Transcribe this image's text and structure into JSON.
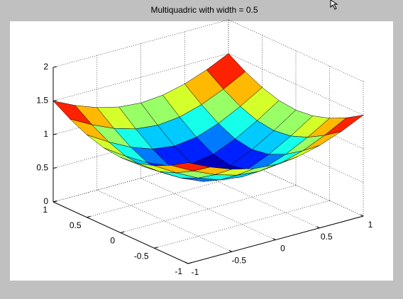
{
  "chart_data": {
    "type": "surface",
    "title": "Multiquadric with width = 0.5",
    "x": [
      -1,
      -0.75,
      -0.5,
      -0.25,
      0,
      0.25,
      0.5,
      0.75,
      1
    ],
    "y": [
      -1,
      -0.75,
      -0.5,
      -0.25,
      0,
      0.25,
      0.5,
      0.75,
      1
    ],
    "z": [
      [
        1.5,
        1.346,
        1.225,
        1.146,
        1.118,
        1.146,
        1.225,
        1.346,
        1.5
      ],
      [
        1.346,
        1.173,
        1.031,
        0.935,
        0.901,
        0.935,
        1.031,
        1.173,
        1.346
      ],
      [
        1.225,
        1.031,
        0.866,
        0.75,
        0.707,
        0.75,
        0.866,
        1.031,
        1.225
      ],
      [
        1.146,
        0.935,
        0.75,
        0.612,
        0.559,
        0.612,
        0.75,
        0.935,
        1.146
      ],
      [
        1.118,
        0.901,
        0.707,
        0.559,
        0.5,
        0.559,
        0.707,
        0.901,
        1.118
      ],
      [
        1.146,
        0.935,
        0.75,
        0.612,
        0.559,
        0.612,
        0.75,
        0.935,
        1.146
      ],
      [
        1.225,
        1.031,
        0.866,
        0.75,
        0.707,
        0.75,
        0.866,
        1.031,
        1.225
      ],
      [
        1.346,
        1.173,
        1.031,
        0.935,
        0.901,
        0.935,
        1.031,
        1.173,
        1.346
      ],
      [
        1.5,
        1.346,
        1.225,
        1.146,
        1.118,
        1.146,
        1.225,
        1.346,
        1.5
      ]
    ],
    "xlim": [
      -1,
      1
    ],
    "ylim": [
      -1,
      1
    ],
    "zlim": [
      0,
      2
    ],
    "xticks": [
      -1,
      -0.5,
      0,
      0.5,
      1
    ],
    "yticks": [
      -1,
      -0.5,
      0,
      0.5,
      1
    ],
    "zticks": [
      0,
      0.5,
      1,
      1.5,
      2
    ],
    "colormap": "jet",
    "clim": [
      0.5,
      1.5
    ],
    "edgecolor": "#000000",
    "grid": true
  }
}
